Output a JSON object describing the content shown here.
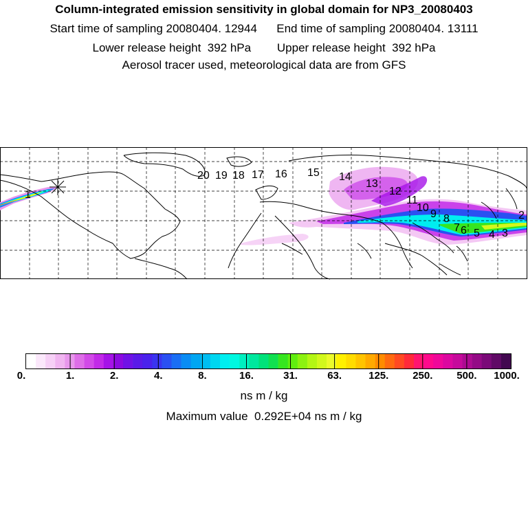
{
  "header": {
    "title": "Column-integrated emission sensitivity in global domain for NP3_20080403",
    "sampling_line": "Start time of sampling 20080404. 12944      End time of sampling 20080404. 13111",
    "release_line": "Lower release height  392 hPa        Upper release height  392 hPa",
    "source_line": "Aerosol tracer used, meteorological data are from GFS"
  },
  "map": {
    "projection": "cylindrical equidistant, global",
    "graticule": "dashed",
    "release_marker": "star",
    "day_labels": [
      "1",
      "2",
      "3",
      "4",
      "5",
      "6",
      "7",
      "8",
      "9",
      "10",
      "11",
      "12",
      "13",
      "14",
      "15",
      "16",
      "17",
      "18",
      "19",
      "20"
    ]
  },
  "colorbar": {
    "ticks": [
      "0.",
      "1.",
      "2.",
      "4.",
      "8.",
      "16.",
      "31.",
      "63.",
      "125.",
      "250.",
      "500.",
      "1000."
    ],
    "colors": [
      "#ffffff",
      "#fbe8fb",
      "#f6d0f6",
      "#f0b5f0",
      "#e897ec",
      "#de6ee8",
      "#d24ae8",
      "#c22ae8",
      "#a613e8",
      "#8c0ae0",
      "#7012e6",
      "#5a1ae8",
      "#4a22ec",
      "#3a34f0",
      "#2a50f2",
      "#1a6ef4",
      "#0a8cf4",
      "#00a6f2",
      "#00bef2",
      "#00d6f0",
      "#00eef0",
      "#00f8e0",
      "#00f0c0",
      "#00e89e",
      "#00e27a",
      "#10e050",
      "#36e620",
      "#60ee10",
      "#8cf210",
      "#b4f614",
      "#d2f81c",
      "#ecfa2a",
      "#fff000",
      "#ffdc00",
      "#ffc400",
      "#ffaa00",
      "#ff8c00",
      "#ff6a10",
      "#ff4a22",
      "#ff2a3a",
      "#ff1470",
      "#ff0a8c",
      "#f0089a",
      "#dc08a0",
      "#c60a9c",
      "#ae0a92",
      "#940a86",
      "#7a0a78",
      "#600a66",
      "#420850"
    ],
    "unit": "ns m / kg",
    "maximum_text": "Maximum value  0.292E+04 ns m / kg"
  }
}
